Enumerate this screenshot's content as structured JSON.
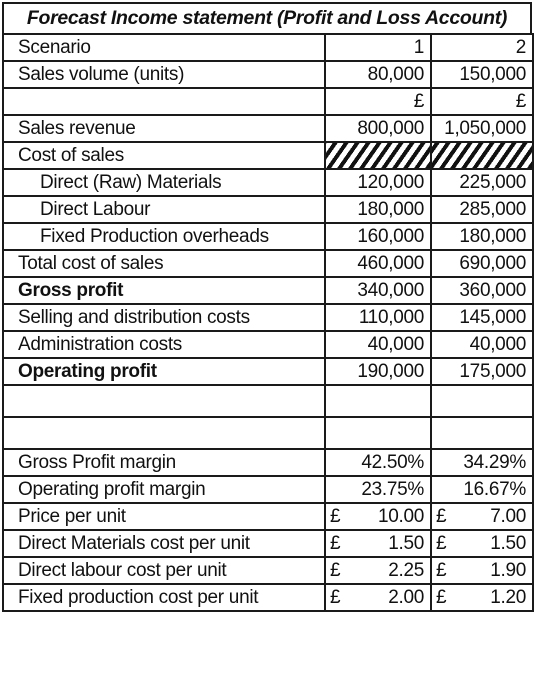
{
  "title": "Forecast Income statement (Profit and Loss Account)",
  "rows": {
    "scenario": {
      "label": "Scenario",
      "v1": "1",
      "v2": "2"
    },
    "sales_volume": {
      "label": "Sales volume (units)",
      "v1": "80,000",
      "v2": "150,000"
    },
    "currency": {
      "label": "",
      "v1": "£",
      "v2": "£"
    },
    "sales_revenue": {
      "label": "Sales revenue",
      "v1": "800,000",
      "v2": "1,050,000"
    },
    "cost_of_sales": {
      "label": "Cost of sales"
    },
    "direct_materials": {
      "label": "Direct (Raw) Materials",
      "v1": "120,000",
      "v2": "225,000"
    },
    "direct_labour": {
      "label": "Direct Labour",
      "v1": "180,000",
      "v2": "285,000"
    },
    "fixed_overheads": {
      "label": "Fixed Production overheads",
      "v1": "160,000",
      "v2": "180,000"
    },
    "total_cost": {
      "label": "Total cost of sales",
      "v1": "460,000",
      "v2": "690,000"
    },
    "gross_profit": {
      "label": "Gross profit",
      "v1": "340,000",
      "v2": "360,000"
    },
    "selling_costs": {
      "label": "Selling and distribution costs",
      "v1": "110,000",
      "v2": "145,000"
    },
    "admin_costs": {
      "label": "Administration costs",
      "v1": "40,000",
      "v2": "40,000"
    },
    "operating_profit": {
      "label": "Operating profit",
      "v1": "190,000",
      "v2": "175,000"
    },
    "gross_margin": {
      "label": "Gross Profit margin",
      "v1": "42.50%",
      "v2": "34.29%"
    },
    "operating_margin": {
      "label": "Operating profit margin",
      "v1": "23.75%",
      "v2": "16.67%"
    },
    "price_per_unit": {
      "label": "Price per unit",
      "sym1": "£",
      "v1": "10.00",
      "sym2": "£",
      "v2": "7.00"
    },
    "dm_per_unit": {
      "label": "Direct Materials cost per unit",
      "sym1": "£",
      "v1": "1.50",
      "sym2": "£",
      "v2": "1.50"
    },
    "dl_per_unit": {
      "label": "Direct labour cost per unit",
      "sym1": "£",
      "v1": "2.25",
      "sym2": "£",
      "v2": "1.90"
    },
    "fp_per_unit": {
      "label": "Fixed production cost per unit",
      "sym1": "£",
      "v1": "2.00",
      "sym2": "£",
      "v2": "1.20"
    }
  }
}
